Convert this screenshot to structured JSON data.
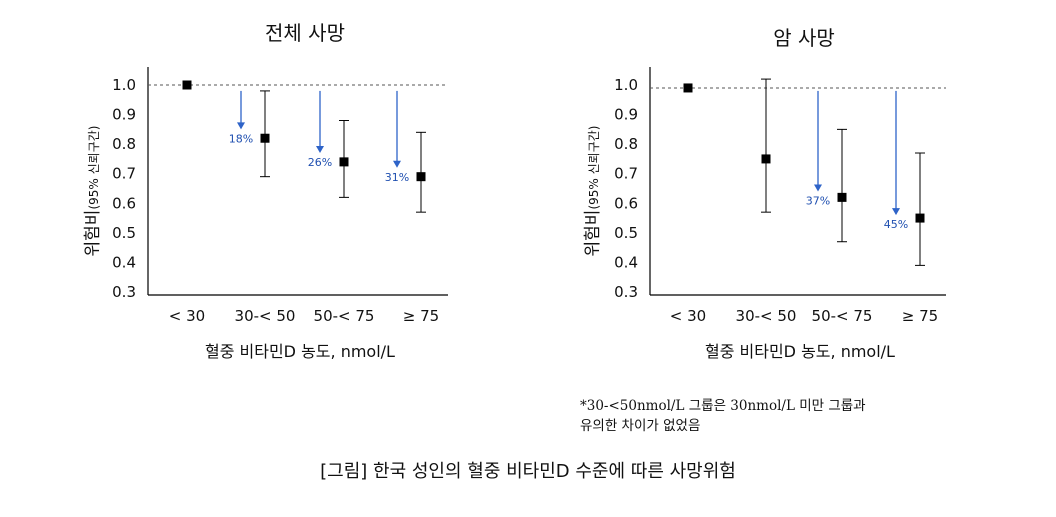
{
  "caption": "[그림] 한국 성인의 혈중 비타민D 수준에 따른 사망위험",
  "note_lines": [
    "*30-<50nmol/L 그룹은 30nmol/L 미만 그룹과",
    "유의한 차이가 없었음"
  ],
  "colors": {
    "arrow": "#2e63c8",
    "percent_text": "#1f4fb0",
    "marker": "#000000",
    "reference_line": "#555555"
  },
  "chart_data": [
    {
      "type": "scatter",
      "title": "전체 사망",
      "ylabel_main": "위험비",
      "ylabel_sub": "(95% 신뢰구간)",
      "xlabel": "혈중 비타민D 농도, nmol/L",
      "categories": [
        "< 30",
        "30-< 50",
        "50-< 75",
        "≥ 75"
      ],
      "ylim": [
        0.3,
        1.0
      ],
      "yticks": [
        "0.3",
        "0.4",
        "0.5",
        "0.6",
        "0.7",
        "0.8",
        "0.9",
        "1.0"
      ],
      "reference_line": 1.0,
      "values": [
        1.0,
        0.82,
        0.74,
        0.69
      ],
      "ci_low": [
        null,
        0.69,
        0.62,
        0.57
      ],
      "ci_high": [
        null,
        0.98,
        0.88,
        0.84
      ],
      "annotations": [
        {
          "category_index": 1,
          "label": "18%",
          "arrow_from": 0.98,
          "arrow_to": 0.85
        },
        {
          "category_index": 2,
          "label": "26%",
          "arrow_from": 0.98,
          "arrow_to": 0.77
        },
        {
          "category_index": 3,
          "label": "31%",
          "arrow_from": 0.98,
          "arrow_to": 0.72
        }
      ]
    },
    {
      "type": "scatter",
      "title": "암 사망",
      "ylabel_main": "위험비",
      "ylabel_sub": "(95% 신뢰구간)",
      "xlabel": "혈중 비타민D 농도, nmol/L",
      "categories": [
        "< 30",
        "30-< 50",
        "50-< 75",
        "≥ 75"
      ],
      "ylim": [
        0.3,
        1.0
      ],
      "yticks": [
        "0.3",
        "0.4",
        "0.5",
        "0.6",
        "0.7",
        "0.8",
        "0.9",
        "1.0"
      ],
      "reference_line": 0.99,
      "values": [
        0.99,
        0.75,
        0.62,
        0.55
      ],
      "ci_low": [
        null,
        0.57,
        0.47,
        0.39
      ],
      "ci_high": [
        null,
        1.02,
        0.85,
        0.77
      ],
      "annotations": [
        {
          "category_index": 2,
          "label": "37%",
          "arrow_from": 0.98,
          "arrow_to": 0.64
        },
        {
          "category_index": 3,
          "label": "45%",
          "arrow_from": 0.98,
          "arrow_to": 0.56
        }
      ]
    }
  ]
}
